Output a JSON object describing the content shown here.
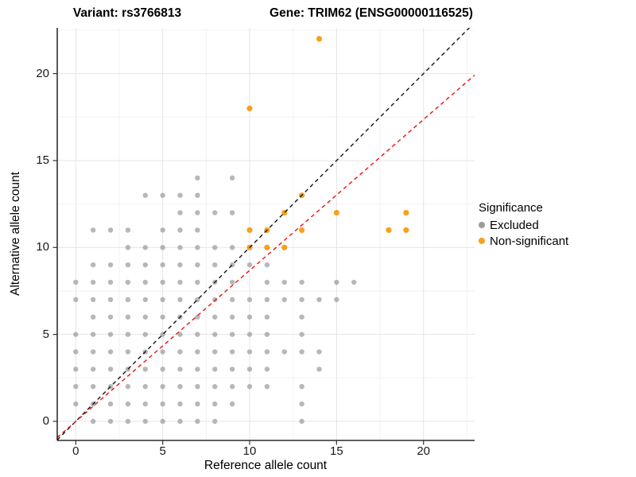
{
  "titles": {
    "variant": "Variant: rs3766813",
    "gene": "Gene: TRIM62 (ENSG00000116525)"
  },
  "legend": {
    "title": "Significance",
    "items": [
      {
        "key": "excluded",
        "label": "Excluded",
        "color": "#9b9b9b"
      },
      {
        "key": "non-significant",
        "label": "Non-significant",
        "color": "#f7a11c"
      }
    ]
  },
  "chart_data": {
    "type": "scatter",
    "title": "",
    "xlabel": "Reference allele count",
    "ylabel": "Alternative allele count",
    "xlim": [
      -1.07,
      22.94
    ],
    "ylim": [
      -1.1,
      22.63
    ],
    "x_ticks": [
      0,
      5,
      10,
      15,
      20
    ],
    "y_ticks": [
      0,
      5,
      10,
      15,
      20
    ],
    "x_minor_ticks": [
      2.5,
      7.5,
      12.5,
      17.5,
      22.5
    ],
    "y_minor_ticks": [
      2.5,
      7.5,
      12.5,
      17.5,
      22.5
    ],
    "grid": "on",
    "legend_position": "right",
    "series": [
      {
        "name": "Excluded",
        "key": "excluded",
        "color": "#9b9b9b",
        "opacity": 0.72,
        "radius": 3.2,
        "points": [
          [
            1,
            0
          ],
          [
            2,
            0
          ],
          [
            3,
            0
          ],
          [
            4,
            0
          ],
          [
            5,
            0
          ],
          [
            6,
            0
          ],
          [
            7,
            0
          ],
          [
            8,
            0
          ],
          [
            13,
            0
          ],
          [
            0,
            1
          ],
          [
            1,
            1
          ],
          [
            2,
            1
          ],
          [
            3,
            1
          ],
          [
            4,
            1
          ],
          [
            5,
            1
          ],
          [
            6,
            1
          ],
          [
            7,
            1
          ],
          [
            8,
            1
          ],
          [
            9,
            1
          ],
          [
            13,
            1
          ],
          [
            0,
            2
          ],
          [
            1,
            2
          ],
          [
            2,
            2
          ],
          [
            3,
            2
          ],
          [
            4,
            2
          ],
          [
            5,
            2
          ],
          [
            6,
            2
          ],
          [
            7,
            2
          ],
          [
            8,
            2
          ],
          [
            9,
            2
          ],
          [
            10,
            2
          ],
          [
            11,
            2
          ],
          [
            13,
            2
          ],
          [
            0,
            3
          ],
          [
            1,
            3
          ],
          [
            2,
            3
          ],
          [
            3,
            3
          ],
          [
            4,
            3
          ],
          [
            5,
            3
          ],
          [
            6,
            3
          ],
          [
            7,
            3
          ],
          [
            8,
            3
          ],
          [
            9,
            3
          ],
          [
            10,
            3
          ],
          [
            11,
            3
          ],
          [
            14,
            3
          ],
          [
            0,
            4
          ],
          [
            1,
            4
          ],
          [
            2,
            4
          ],
          [
            3,
            4
          ],
          [
            4,
            4
          ],
          [
            5,
            4
          ],
          [
            6,
            4
          ],
          [
            7,
            4
          ],
          [
            8,
            4
          ],
          [
            9,
            4
          ],
          [
            10,
            4
          ],
          [
            11,
            4
          ],
          [
            12,
            4
          ],
          [
            13,
            4
          ],
          [
            14,
            4
          ],
          [
            0,
            5
          ],
          [
            1,
            5
          ],
          [
            2,
            5
          ],
          [
            3,
            5
          ],
          [
            4,
            5
          ],
          [
            5,
            5
          ],
          [
            6,
            5
          ],
          [
            7,
            5
          ],
          [
            8,
            5
          ],
          [
            9,
            5
          ],
          [
            10,
            5
          ],
          [
            11,
            5
          ],
          [
            13,
            5
          ],
          [
            1,
            6
          ],
          [
            2,
            6
          ],
          [
            3,
            6
          ],
          [
            4,
            6
          ],
          [
            5,
            6
          ],
          [
            6,
            6
          ],
          [
            7,
            6
          ],
          [
            8,
            6
          ],
          [
            9,
            6
          ],
          [
            10,
            6
          ],
          [
            11,
            6
          ],
          [
            13,
            6
          ],
          [
            0,
            7
          ],
          [
            1,
            7
          ],
          [
            2,
            7
          ],
          [
            3,
            7
          ],
          [
            4,
            7
          ],
          [
            5,
            7
          ],
          [
            6,
            7
          ],
          [
            7,
            7
          ],
          [
            8,
            7
          ],
          [
            9,
            7
          ],
          [
            10,
            7
          ],
          [
            11,
            7
          ],
          [
            12,
            7
          ],
          [
            13,
            7
          ],
          [
            14,
            7
          ],
          [
            15,
            7
          ],
          [
            0,
            8
          ],
          [
            1,
            8
          ],
          [
            2,
            8
          ],
          [
            3,
            8
          ],
          [
            4,
            8
          ],
          [
            5,
            8
          ],
          [
            6,
            8
          ],
          [
            7,
            8
          ],
          [
            8,
            8
          ],
          [
            9,
            8
          ],
          [
            11,
            8
          ],
          [
            12,
            8
          ],
          [
            13,
            8
          ],
          [
            15,
            8
          ],
          [
            16,
            8
          ],
          [
            1,
            9
          ],
          [
            2,
            9
          ],
          [
            3,
            9
          ],
          [
            4,
            9
          ],
          [
            5,
            9
          ],
          [
            6,
            9
          ],
          [
            7,
            9
          ],
          [
            8,
            9
          ],
          [
            9,
            9
          ],
          [
            10,
            9
          ],
          [
            11,
            9
          ],
          [
            3,
            10
          ],
          [
            4,
            10
          ],
          [
            5,
            10
          ],
          [
            6,
            10
          ],
          [
            7,
            10
          ],
          [
            8,
            10
          ],
          [
            9,
            10
          ],
          [
            1,
            11
          ],
          [
            2,
            11
          ],
          [
            3,
            11
          ],
          [
            5,
            11
          ],
          [
            6,
            11
          ],
          [
            7,
            11
          ],
          [
            6,
            12
          ],
          [
            7,
            12
          ],
          [
            8,
            12
          ],
          [
            9,
            12
          ],
          [
            4,
            13
          ],
          [
            5,
            13
          ],
          [
            6,
            13
          ],
          [
            7,
            13
          ],
          [
            7,
            14
          ],
          [
            9,
            14
          ]
        ]
      },
      {
        "name": "Non-significant",
        "key": "non-significant",
        "color": "#f7a11c",
        "opacity": 1.0,
        "radius": 3.6,
        "points": [
          [
            10,
            10
          ],
          [
            11,
            10
          ],
          [
            12,
            10
          ],
          [
            10,
            11
          ],
          [
            11,
            11
          ],
          [
            13,
            11
          ],
          [
            18,
            11
          ],
          [
            19,
            11
          ],
          [
            12,
            12
          ],
          [
            15,
            12
          ],
          [
            19,
            12
          ],
          [
            13,
            13
          ],
          [
            10,
            18
          ],
          [
            14,
            22
          ]
        ]
      }
    ],
    "reference_lines": [
      {
        "name": "identity-line",
        "slope": 1.0,
        "intercept": 0,
        "color": "#141414",
        "style": "dashed"
      },
      {
        "name": "expected-ratio-line",
        "slope": 0.868,
        "intercept": 0,
        "color": "#ee1111",
        "style": "dashed"
      }
    ],
    "colors": {
      "grid_major": "#e4e4e4",
      "grid_minor": "#f2f2f2",
      "axis": "#000000",
      "tick": "#333333"
    }
  }
}
